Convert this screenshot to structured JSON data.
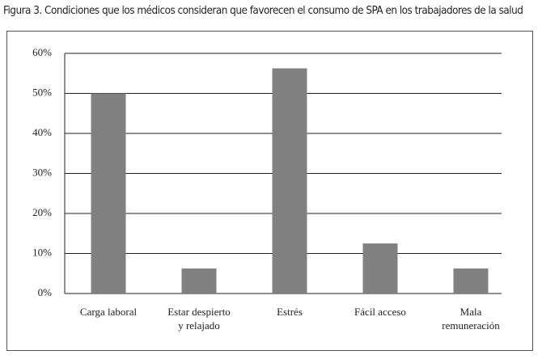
{
  "chart_data": {
    "type": "bar",
    "title": "Figura 3. Condiciones que los médicos consideran que favorecen el consumo de SPA en los trabajadores de la salud",
    "categories": [
      "Carga laboral",
      "Estar despierto\ny relajado",
      "Estrés",
      "Fácil acceso",
      "Mala\nremuneración"
    ],
    "values": [
      50,
      6.25,
      56.25,
      12.5,
      6.25
    ],
    "color": "#808080",
    "ylim": [
      0,
      60
    ],
    "yticks": [
      {
        "value": 0,
        "label": "0%"
      },
      {
        "value": 10,
        "label": "10%"
      },
      {
        "value": 20,
        "label": "20%"
      },
      {
        "value": 30,
        "label": "30%"
      },
      {
        "value": 40,
        "label": "40%"
      },
      {
        "value": 50,
        "label": "50%"
      },
      {
        "value": 60,
        "label": "60%"
      }
    ],
    "grid": true
  }
}
